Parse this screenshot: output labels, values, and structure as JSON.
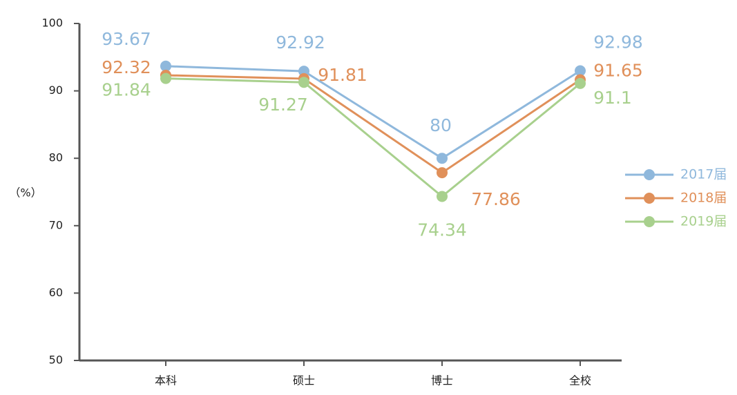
{
  "chart_data": {
    "type": "line",
    "y_label": "（%）",
    "categories": [
      "本科",
      "硕士",
      "博士",
      "全校"
    ],
    "series": [
      {
        "name": "2017届",
        "color": "#8fb8dc",
        "values": [
          93.67,
          92.92,
          80,
          92.98
        ]
      },
      {
        "name": "2018届",
        "color": "#e0905a",
        "values": [
          92.32,
          91.81,
          77.86,
          91.65
        ]
      },
      {
        "name": "2019届",
        "color": "#a8d08d",
        "values": [
          91.84,
          91.27,
          74.34,
          91.1
        ]
      }
    ],
    "ylim": [
      50,
      100
    ],
    "yticks": [
      50,
      60,
      70,
      80,
      90,
      100
    ],
    "legend": "right"
  }
}
